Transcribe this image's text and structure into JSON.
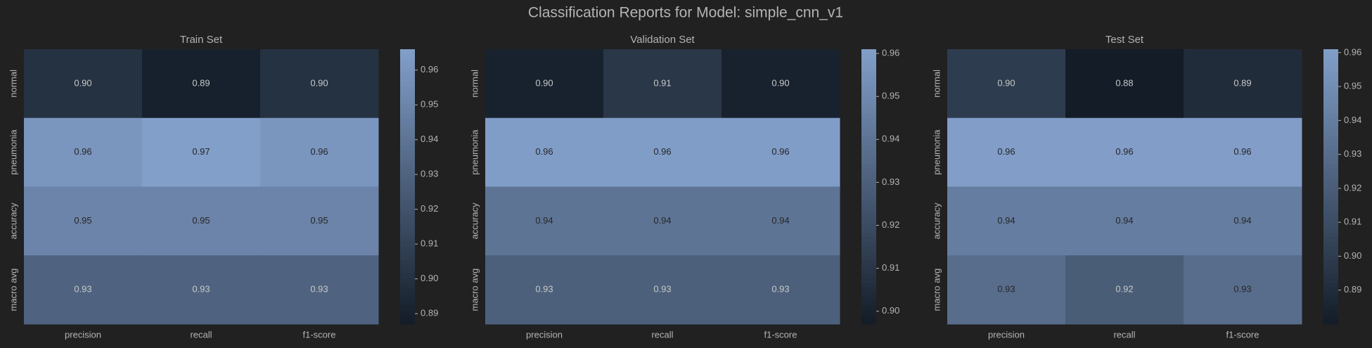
{
  "title": "Classification Reports for Model: simple_cnn_v1",
  "colormap": [
    "#131c27",
    "#829fca"
  ],
  "chart_data": [
    {
      "type": "heatmap",
      "title": "Train Set",
      "x_categories": [
        "precision",
        "recall",
        "f1-score"
      ],
      "y_categories": [
        "normal",
        "pneumonia",
        "accuracy",
        "macro avg"
      ],
      "values": [
        [
          0.9,
          0.89,
          0.9
        ],
        [
          0.96,
          0.97,
          0.96
        ],
        [
          0.95,
          0.95,
          0.95
        ],
        [
          0.93,
          0.93,
          0.93
        ]
      ],
      "value_labels": [
        [
          "0.90",
          "0.89",
          "0.90"
        ],
        [
          "0.96",
          "0.97",
          "0.96"
        ],
        [
          "0.95",
          "0.95",
          "0.95"
        ],
        [
          "0.93",
          "0.93",
          "0.93"
        ]
      ],
      "clim": [
        0.887,
        0.966
      ],
      "cticks": [
        0.89,
        {
          "value": 0.9,
          "label": "0.90"
        },
        0.91,
        0.92,
        0.93,
        0.94,
        0.95,
        0.96
      ]
    },
    {
      "type": "heatmap",
      "title": "Validation Set",
      "x_categories": [
        "precision",
        "recall",
        "f1-score"
      ],
      "y_categories": [
        "normal",
        "pneumonia",
        "accuracy",
        "macro avg"
      ],
      "values": [
        [
          0.9,
          0.91,
          0.9
        ],
        [
          0.96,
          0.96,
          0.96
        ],
        [
          0.94,
          0.94,
          0.94
        ],
        [
          0.93,
          0.93,
          0.93
        ]
      ],
      "value_labels": [
        [
          "0.90",
          "0.91",
          "0.90"
        ],
        [
          "0.96",
          "0.96",
          "0.96"
        ],
        [
          "0.94",
          "0.94",
          "0.94"
        ],
        [
          "0.93",
          "0.93",
          "0.93"
        ]
      ],
      "clim": [
        0.897,
        0.961
      ],
      "cticks": [
        {
          "value": 0.9,
          "label": "0.90"
        },
        0.91,
        0.92,
        0.93,
        0.94,
        0.95,
        0.96
      ]
    },
    {
      "type": "heatmap",
      "title": "Test Set",
      "x_categories": [
        "precision",
        "recall",
        "f1-score"
      ],
      "y_categories": [
        "normal",
        "pneumonia",
        "accuracy",
        "macro avg"
      ],
      "values": [
        [
          0.9,
          0.88,
          0.89
        ],
        [
          0.96,
          0.96,
          0.96
        ],
        [
          0.94,
          0.94,
          0.94
        ],
        [
          0.93,
          0.92,
          0.93
        ]
      ],
      "value_labels": [
        [
          "0.90",
          "0.88",
          "0.89"
        ],
        [
          "0.96",
          "0.96",
          "0.96"
        ],
        [
          "0.94",
          "0.94",
          "0.94"
        ],
        [
          "0.93",
          "0.92",
          "0.93"
        ]
      ],
      "clim": [
        0.88,
        0.961
      ],
      "cticks": [
        0.89,
        {
          "value": 0.9,
          "label": "0.90"
        },
        0.91,
        0.92,
        0.93,
        0.94,
        0.95,
        0.96
      ]
    }
  ]
}
